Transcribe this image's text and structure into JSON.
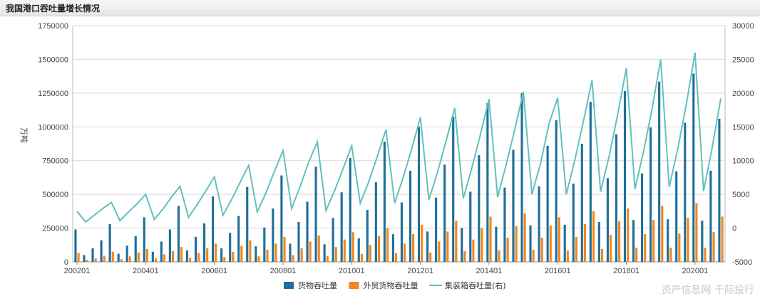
{
  "window": {
    "title": "我国港口吞吐量增长情况"
  },
  "watermark": "资产信息网 千际投行",
  "chart_data": {
    "type": "bar",
    "title": "我国港口吞吐量增长情况",
    "ylabel": "万吨",
    "ylim": [
      0,
      1750000
    ],
    "y_ticks": [
      "0",
      "250000",
      "500000",
      "750000",
      "1000000",
      "1250000",
      "1500000",
      "1750000"
    ],
    "y2lim": [
      -5000,
      30000
    ],
    "y2_ticks": [
      "-5000",
      "0",
      "5000",
      "10000",
      "15000",
      "20000",
      "25000",
      "30000"
    ],
    "x_tick_labels": [
      "200201",
      "200401",
      "200601",
      "200801",
      "201001",
      "201201",
      "201401",
      "201601",
      "201801",
      "202001"
    ],
    "grid": true,
    "legend_position": "bottom",
    "colors": {
      "cargo": "#1f6f9a",
      "foreign": "#f0871f",
      "container": "#62c0be"
    },
    "series": [
      {
        "name": "货物吞吐量",
        "kind": "bar",
        "axis": "left",
        "values": [
          240000,
          50000,
          100000,
          160000,
          280000,
          60000,
          120000,
          190000,
          330000,
          75000,
          150000,
          240000,
          415000,
          85000,
          185000,
          285000,
          485000,
          100000,
          215000,
          340000,
          555000,
          115000,
          255000,
          395000,
          640000,
          135000,
          295000,
          445000,
          705000,
          130000,
          325000,
          515000,
          770000,
          175000,
          385000,
          590000,
          890000,
          205000,
          440000,
          675000,
          1000000,
          225000,
          475000,
          720000,
          1075000,
          250000,
          520000,
          790000,
          1175000,
          260000,
          550000,
          830000,
          1250000,
          270000,
          560000,
          860000,
          1050000,
          275000,
          580000,
          875000,
          1185000,
          295000,
          620000,
          945000,
          1265000,
          310000,
          655000,
          995000,
          1335000,
          315000,
          670000,
          1030000,
          1395000,
          305000,
          675000,
          1060000
        ]
      },
      {
        "name": "外贸货物吞吐量",
        "kind": "bar",
        "axis": "left",
        "values": [
          65000,
          15000,
          25000,
          45000,
          75000,
          20000,
          40000,
          70000,
          95000,
          25000,
          55000,
          80000,
          110000,
          30000,
          65000,
          100000,
          135000,
          35000,
          75000,
          120000,
          160000,
          40000,
          90000,
          135000,
          185000,
          50000,
          100000,
          150000,
          195000,
          45000,
          110000,
          165000,
          220000,
          60000,
          125000,
          190000,
          250000,
          65000,
          135000,
          205000,
          275000,
          70000,
          150000,
          225000,
          305000,
          80000,
          165000,
          250000,
          335000,
          85000,
          180000,
          265000,
          360000,
          90000,
          180000,
          270000,
          330000,
          85000,
          185000,
          280000,
          375000,
          95000,
          200000,
          300000,
          395000,
          105000,
          205000,
          310000,
          415000,
          105000,
          210000,
          325000,
          435000,
          105000,
          220000,
          335000
        ]
      },
      {
        "name": "集装箱吞吐量(右)",
        "kind": "line",
        "axis": "right",
        "values": [
          2500,
          900,
          1900,
          2900,
          3800,
          1100,
          2400,
          3600,
          5000,
          1300,
          2800,
          4600,
          6200,
          1600,
          3500,
          5500,
          7600,
          1900,
          4200,
          6800,
          9300,
          2400,
          5200,
          8400,
          11500,
          2900,
          6200,
          9800,
          12800,
          2600,
          5500,
          8800,
          12200,
          3700,
          6900,
          10700,
          14600,
          3700,
          7500,
          11800,
          16400,
          4200,
          8300,
          12900,
          17800,
          4400,
          8900,
          13900,
          19100,
          4600,
          9400,
          14600,
          20200,
          5000,
          9600,
          15500,
          19300,
          5000,
          10100,
          15800,
          21900,
          5400,
          10700,
          16900,
          23700,
          5800,
          11300,
          17700,
          25000,
          6100,
          11800,
          18400,
          26000,
          5500,
          11900,
          19200
        ]
      }
    ]
  }
}
